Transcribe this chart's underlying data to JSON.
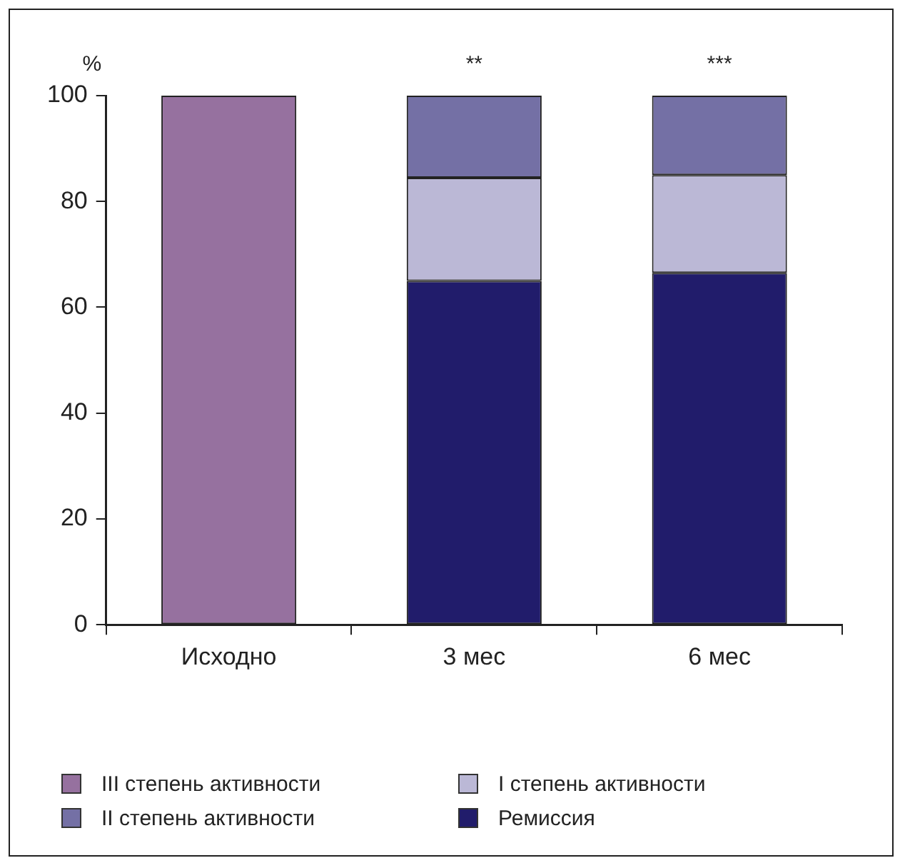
{
  "chart_data": {
    "type": "bar",
    "stacked": true,
    "ylabel": "%",
    "categories": [
      "Исходно",
      "3 мес",
      "6 мес"
    ],
    "series": [
      {
        "name": "Ремиссия",
        "color": "#211c6b",
        "values": [
          null,
          65,
          66.5
        ]
      },
      {
        "name": "I степень активности",
        "color": "#bbb8d6",
        "values": [
          null,
          19.5,
          18.5
        ]
      },
      {
        "name": "II степень активности",
        "color": "#7470a5",
        "values": [
          null,
          15.5,
          15
        ]
      },
      {
        "name": "III степень активности",
        "color": "#96719f",
        "values": [
          100,
          null,
          null
        ]
      }
    ],
    "ylim": [
      0,
      100
    ],
    "yticks": [
      0,
      20,
      40,
      60,
      80,
      100
    ],
    "grid": false,
    "legend": "bottom",
    "annotations": [
      "**",
      "***"
    ]
  }
}
